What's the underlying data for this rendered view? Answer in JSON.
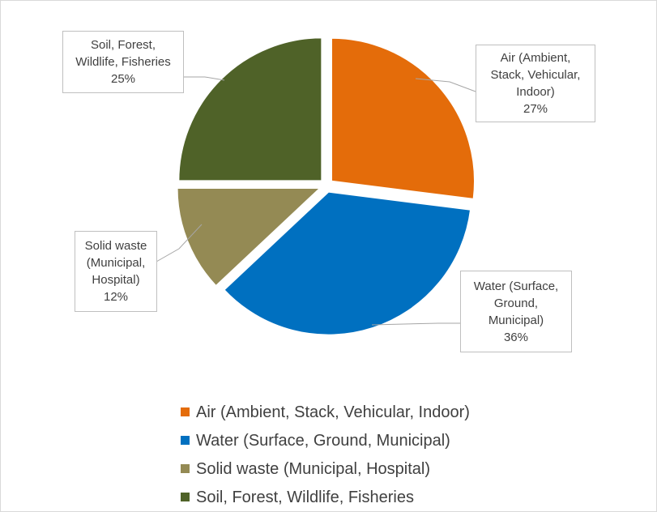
{
  "chart_data": {
    "type": "pie",
    "title": "",
    "slices": [
      {
        "category": "Air (Ambient, Stack, Vehicular, Indoor)",
        "label_lines": [
          "Air (Ambient,",
          "Stack, Vehicular,",
          "Indoor)"
        ],
        "value": 27,
        "value_label": "27%",
        "color": "#E46C0A"
      },
      {
        "category": "Water (Surface, Ground, Municipal)",
        "label_lines": [
          "Water (Surface,",
          "Ground,",
          "Municipal)"
        ],
        "value": 36,
        "value_label": "36%",
        "color": "#0070C0"
      },
      {
        "category": "Solid waste (Municipal, Hospital)",
        "label_lines": [
          "Solid waste",
          "(Municipal,",
          "Hospital)"
        ],
        "value": 12,
        "value_label": "12%",
        "color": "#948A54"
      },
      {
        "category": "Soil, Forest, Wildlife, Fisheries",
        "label_lines": [
          "Soil, Forest,",
          "Wildlife, Fisheries"
        ],
        "value": 25,
        "value_label": "25%",
        "color": "#4F6228"
      }
    ],
    "legend_position": "bottom"
  }
}
